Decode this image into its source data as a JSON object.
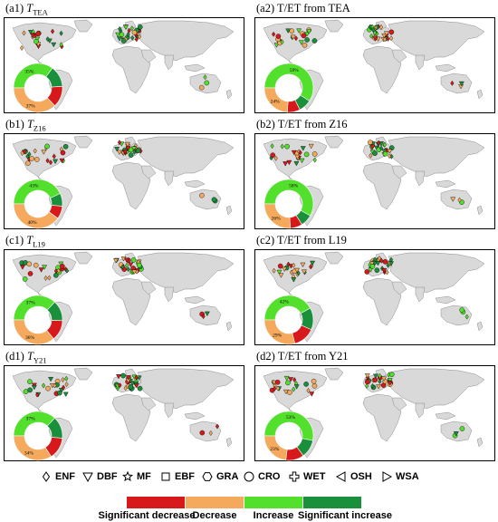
{
  "panels": [
    {
      "label": "(a1) ",
      "italic": "T",
      "sub": "TEA",
      "suffix": "",
      "donut": {
        "increase_pct": "35%",
        "decrease_pct": "37%"
      }
    },
    {
      "label": "(a2) T/ET from TEA",
      "italic": "",
      "sub": "",
      "suffix": "",
      "donut": {
        "increase_pct": "59%",
        "decrease_pct": "24%"
      }
    },
    {
      "label": "(b1) ",
      "italic": "T",
      "sub": "Z16",
      "suffix": "",
      "donut": {
        "increase_pct": "43%",
        "decrease_pct": "40%"
      }
    },
    {
      "label": "(b2) T/ET from Z16",
      "italic": "",
      "sub": "",
      "suffix": "",
      "donut": {
        "increase_pct": "58%",
        "decrease_pct": "26%"
      }
    },
    {
      "label": "(c1) ",
      "italic": "T",
      "sub": "L19",
      "suffix": "",
      "donut": {
        "increase_pct": "37%",
        "decrease_pct": "36%"
      }
    },
    {
      "label": "(c2) T/ET from L19",
      "italic": "",
      "sub": "",
      "suffix": "",
      "donut": {
        "increase_pct": "42%",
        "decrease_pct": "29%"
      }
    },
    {
      "label": "(d1) ",
      "italic": "T",
      "sub": "Y21",
      "suffix": "",
      "donut": {
        "increase_pct": "37%",
        "decrease_pct": "34%"
      }
    },
    {
      "label": "(d2) T/ET from Y21",
      "italic": "",
      "sub": "",
      "suffix": "",
      "donut": {
        "increase_pct": "53%",
        "decrease_pct": "23%"
      }
    }
  ],
  "vegetation_legend": [
    {
      "symbol": "diamond",
      "label": "ENF"
    },
    {
      "symbol": "triangle-down",
      "label": "DBF"
    },
    {
      "symbol": "star",
      "label": "MF"
    },
    {
      "symbol": "square",
      "label": "EBF"
    },
    {
      "symbol": "hexagon",
      "label": "GRA"
    },
    {
      "symbol": "circle",
      "label": "CRO"
    },
    {
      "symbol": "cross",
      "label": "WET"
    },
    {
      "symbol": "triangle-left",
      "label": "OSH"
    },
    {
      "symbol": "triangle-right",
      "label": "WSA"
    }
  ],
  "trend_legend": [
    {
      "label": "Significant decrease",
      "color": "#d7191c"
    },
    {
      "label": "Decrease",
      "color": "#f4a95c"
    },
    {
      "label": "Increase",
      "color": "#53e02c"
    },
    {
      "label": "Significant increase",
      "color": "#1a8f3c"
    }
  ],
  "colors": {
    "land": "#d9d9d9",
    "land_stroke": "#8c8c8c",
    "ocean": "#ffffff",
    "frame": "#000000"
  }
}
